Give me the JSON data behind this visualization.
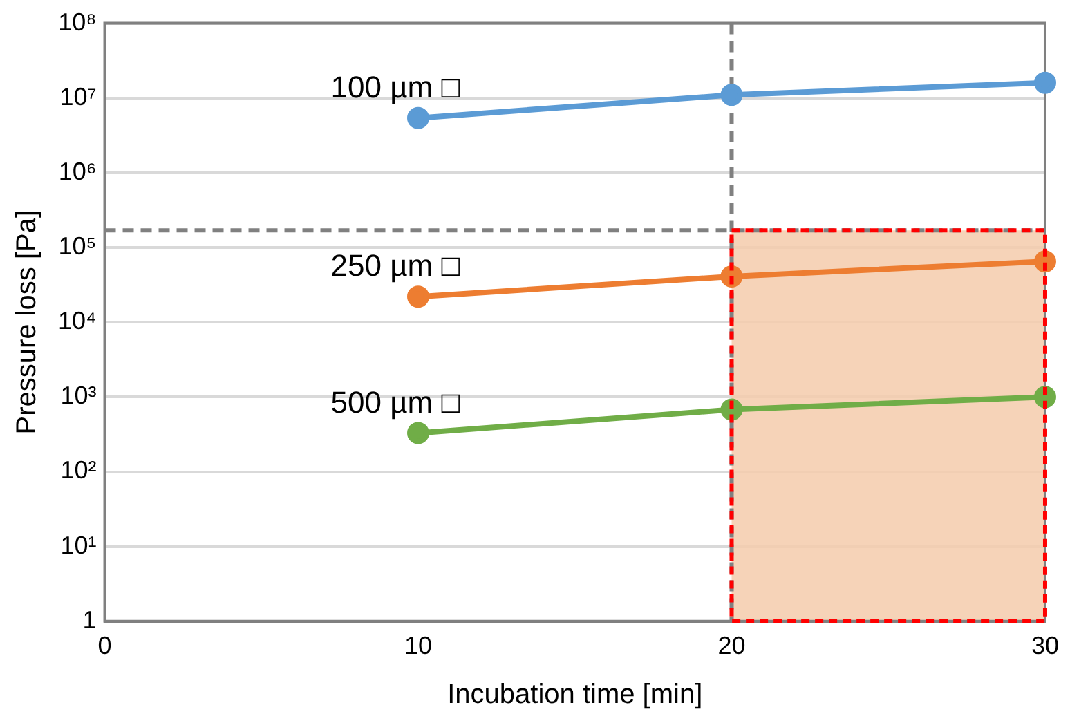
{
  "chart_data": {
    "type": "line",
    "xlabel": "Incubation time [min]",
    "ylabel": "Pressure loss [Pa]",
    "x": [
      10,
      20,
      30
    ],
    "series": [
      {
        "name": "100 µm □",
        "color": "#5b9bd5",
        "values": [
          5400000,
          11000000,
          16000000
        ]
      },
      {
        "name": "250 µm □",
        "color": "#ed7d31",
        "values": [
          22000,
          41000,
          65000
        ]
      },
      {
        "name": "500 µm □",
        "color": "#70ad47",
        "values": [
          330,
          680,
          1000
        ]
      }
    ],
    "xlim": [
      0,
      30
    ],
    "xticks": [
      0,
      10,
      20,
      30
    ],
    "ylim": [
      1,
      100000000
    ],
    "yticks": [
      1,
      {
        "value": 10,
        "label": "10¹"
      },
      {
        "value": 100,
        "label": "10²"
      },
      {
        "value": 1000,
        "label": "10³"
      },
      {
        "value": 10000,
        "label": "10⁴"
      },
      {
        "value": 100000,
        "label": "10⁵"
      },
      {
        "value": 1000000,
        "label": "10⁶"
      },
      {
        "value": 10000000,
        "label": "10⁷"
      },
      {
        "value": 100000000,
        "label": "10⁸"
      }
    ],
    "log": "y",
    "grid": "y",
    "legend": false,
    "marker": "circle",
    "line_style": "solid",
    "ref_lines": [
      {
        "axis": "y",
        "value": 170000,
        "color": "#808080",
        "line_style": "dashed"
      },
      {
        "axis": "x",
        "value": 20,
        "color": "#808080",
        "line_style": "dashed"
      }
    ],
    "bands": [
      {
        "axis": "x",
        "from": 20,
        "to": 30,
        "color": "#f4cbab"
      }
    ]
  }
}
